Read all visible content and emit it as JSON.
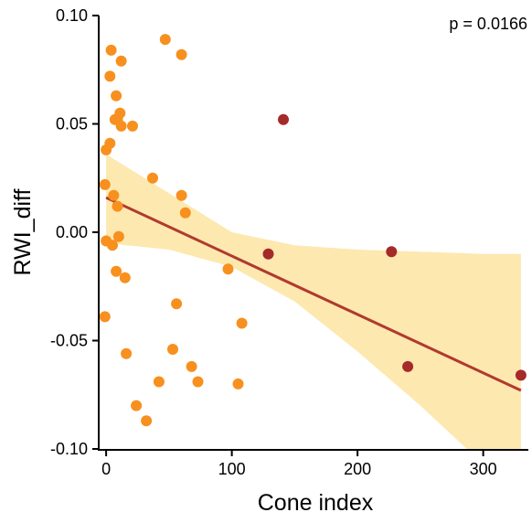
{
  "chart_data": {
    "type": "scatter",
    "title": "",
    "xlabel": "Cone index",
    "ylabel": "RWI_diff",
    "annotation": "p = 0.0166",
    "xlim": [
      -3,
      333
    ],
    "ylim": [
      -0.1,
      0.1
    ],
    "xticks": [
      0,
      100,
      200,
      300
    ],
    "yticks": [
      -0.1,
      -0.05,
      0.0,
      0.05,
      0.1
    ],
    "ytick_labels": [
      "-0.10",
      "-0.05",
      "0.00",
      "0.05",
      "0.10"
    ],
    "xtick_labels": [
      "0",
      "100",
      "200",
      "300"
    ],
    "grid": false,
    "colors": {
      "orange_points": "#f7901e",
      "red_points": "#a52a2a",
      "fit_line": "#b03a2e",
      "confidence_band": "#fde8b0",
      "axis": "#000000"
    },
    "series": [
      {
        "color_key": "orange_points",
        "points": [
          [
            4,
            0.084
          ],
          [
            12,
            0.079
          ],
          [
            3,
            0.072
          ],
          [
            8,
            0.063
          ],
          [
            11,
            0.055
          ],
          [
            7,
            0.052
          ],
          [
            9,
            0.052
          ],
          [
            12,
            0.049
          ],
          [
            21,
            0.049
          ],
          [
            3,
            0.041
          ],
          [
            0,
            0.038
          ],
          [
            -1,
            0.022
          ],
          [
            6,
            0.017
          ],
          [
            9,
            0.012
          ],
          [
            0,
            -0.004
          ],
          [
            5,
            -0.006
          ],
          [
            10,
            -0.002
          ],
          [
            8,
            -0.018
          ],
          [
            15,
            -0.021
          ],
          [
            -1,
            -0.039
          ],
          [
            16,
            -0.056
          ],
          [
            24,
            -0.08
          ],
          [
            32,
            -0.087
          ],
          [
            42,
            -0.069
          ],
          [
            53,
            -0.054
          ],
          [
            56,
            -0.033
          ],
          [
            68,
            -0.062
          ],
          [
            73,
            -0.069
          ],
          [
            47,
            0.089
          ],
          [
            60,
            0.082
          ],
          [
            37,
            0.025
          ],
          [
            60,
            0.017
          ],
          [
            63,
            0.009
          ],
          [
            97,
            -0.017
          ],
          [
            108,
            -0.042
          ],
          [
            105,
            -0.07
          ]
        ]
      },
      {
        "color_key": "red_points",
        "points": [
          [
            141,
            0.052
          ],
          [
            129,
            -0.01
          ],
          [
            227,
            -0.009
          ],
          [
            240,
            -0.062
          ],
          [
            330,
            -0.066
          ]
        ]
      }
    ],
    "fit": {
      "x": [
        0,
        330
      ],
      "y": [
        0.016,
        -0.073
      ],
      "band": [
        [
          0,
          0.036,
          -0.005
        ],
        [
          50,
          0.018,
          -0.008
        ],
        [
          100,
          0.0,
          -0.016
        ],
        [
          150,
          -0.006,
          -0.032
        ],
        [
          200,
          -0.008,
          -0.055
        ],
        [
          250,
          -0.009,
          -0.08
        ],
        [
          300,
          -0.01,
          -0.107
        ],
        [
          330,
          -0.01,
          -0.125
        ]
      ]
    }
  }
}
